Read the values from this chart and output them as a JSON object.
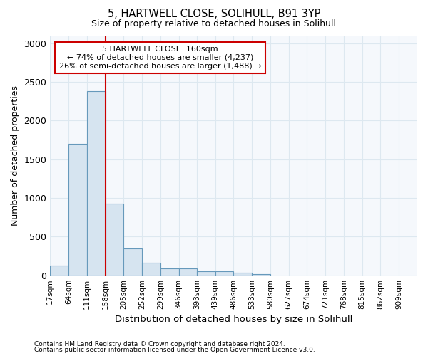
{
  "title_line1": "5, HARTWELL CLOSE, SOLIHULL, B91 3YP",
  "title_line2": "Size of property relative to detached houses in Solihull",
  "xlabel": "Distribution of detached houses by size in Solihull",
  "ylabel": "Number of detached properties",
  "footnote1": "Contains HM Land Registry data © Crown copyright and database right 2024.",
  "footnote2": "Contains public sector information licensed under the Open Government Licence v3.0.",
  "bar_edges": [
    17,
    64,
    111,
    158,
    205,
    252,
    299,
    346,
    393,
    439,
    486,
    533,
    580,
    627,
    674,
    721,
    768,
    815,
    862,
    909,
    956
  ],
  "bar_heights": [
    130,
    1700,
    2380,
    930,
    350,
    160,
    90,
    90,
    50,
    50,
    35,
    20,
    0,
    0,
    0,
    0,
    0,
    0,
    0,
    0
  ],
  "bar_color": "#d6e4f0",
  "bar_edge_color": "#6699bb",
  "bar_linewidth": 0.8,
  "property_line_x": 158,
  "property_line_color": "#cc0000",
  "annotation_text_line1": "5 HARTWELL CLOSE: 160sqm",
  "annotation_text_line2": "← 74% of detached houses are smaller (4,237)",
  "annotation_text_line3": "26% of semi-detached houses are larger (1,488) →",
  "annotation_box_color": "#ffffff",
  "annotation_box_edge_color": "#cc0000",
  "ylim": [
    0,
    3100
  ],
  "yticks": [
    0,
    500,
    1000,
    1500,
    2000,
    2500,
    3000
  ],
  "bg_color": "#ffffff",
  "plot_bg_color": "#f5f8fc",
  "grid_color": "#dde8f0",
  "tick_label_size": 7.5,
  "figsize": [
    6.0,
    5.0
  ],
  "dpi": 100
}
